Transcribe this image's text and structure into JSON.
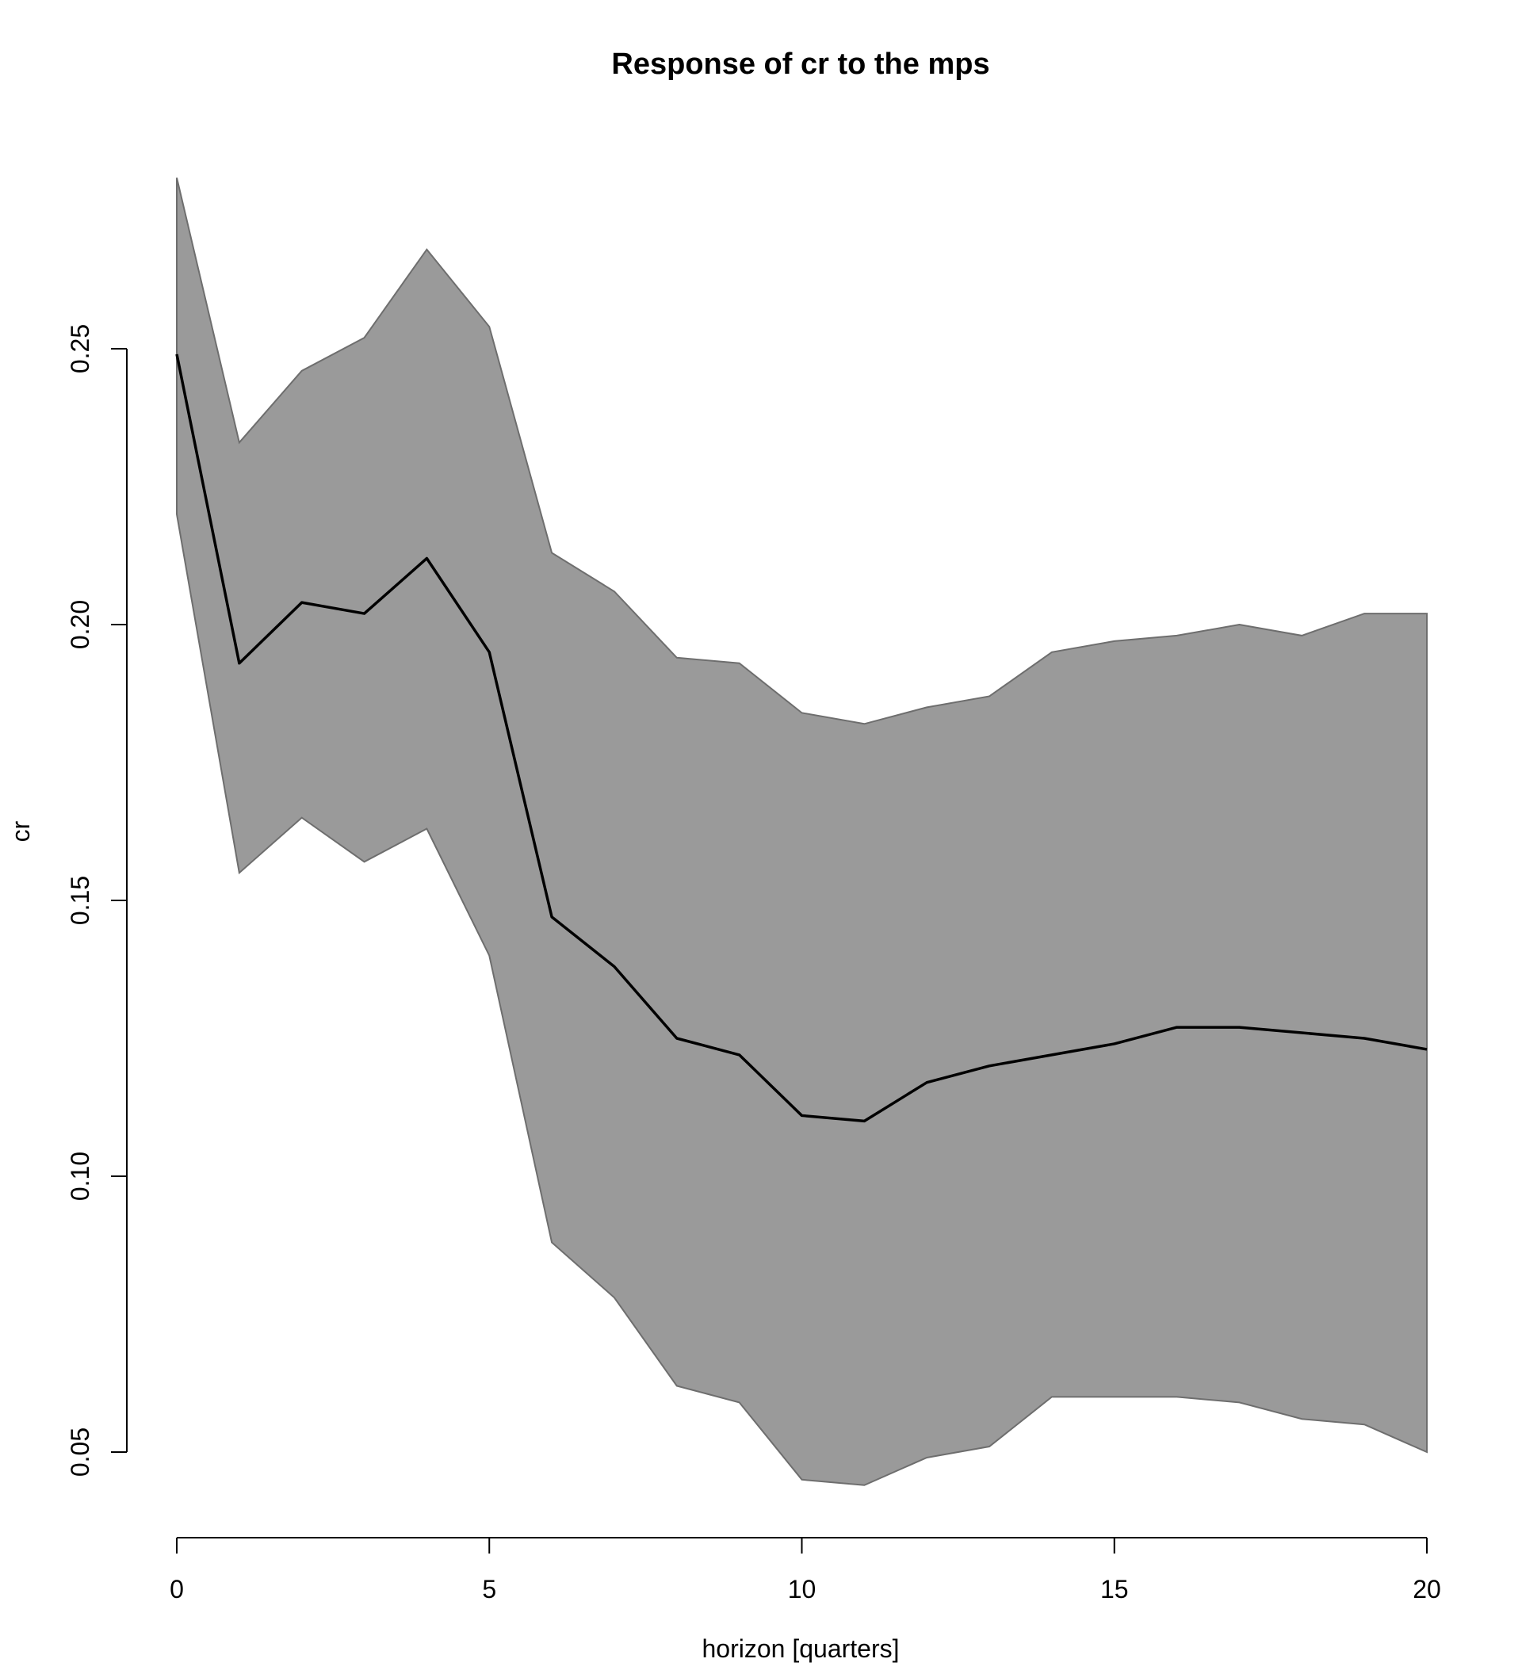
{
  "chart_data": {
    "type": "area",
    "title": "Response of cr to the mps",
    "xlabel": "horizon [quarters]",
    "ylabel": "cr",
    "xlim": [
      0,
      20
    ],
    "ylim": [
      0.05,
      0.25
    ],
    "xticks": [
      0,
      5,
      10,
      15,
      20
    ],
    "xtick_labels": [
      "0",
      "5",
      "10",
      "15",
      "20"
    ],
    "yticks": [
      0.05,
      0.1,
      0.15,
      0.2,
      0.25
    ],
    "ytick_labels": [
      "0.05",
      "0.10",
      "0.15",
      "0.20",
      "0.25"
    ],
    "grid": false,
    "legend": "none",
    "x": [
      0,
      1,
      2,
      3,
      4,
      5,
      6,
      7,
      8,
      9,
      10,
      11,
      12,
      13,
      14,
      15,
      16,
      17,
      18,
      19,
      20
    ],
    "series": [
      {
        "role": "median",
        "color": "#000000",
        "values": [
          0.249,
          0.193,
          0.204,
          0.202,
          0.212,
          0.195,
          0.147,
          0.138,
          0.125,
          0.122,
          0.111,
          0.11,
          0.117,
          0.12,
          0.122,
          0.124,
          0.127,
          0.127,
          0.126,
          0.125,
          0.123
        ]
      },
      {
        "role": "upper-band",
        "color": "#9a9a9a",
        "values": [
          0.281,
          0.233,
          0.246,
          0.252,
          0.268,
          0.254,
          0.213,
          0.206,
          0.194,
          0.193,
          0.184,
          0.182,
          0.185,
          0.187,
          0.195,
          0.197,
          0.198,
          0.2,
          0.198,
          0.202,
          0.202
        ]
      },
      {
        "role": "lower-band",
        "color": "#9a9a9a",
        "values": [
          0.22,
          0.155,
          0.165,
          0.157,
          0.163,
          0.14,
          0.088,
          0.078,
          0.062,
          0.059,
          0.045,
          0.044,
          0.049,
          0.051,
          0.06,
          0.06,
          0.06,
          0.059,
          0.056,
          0.055,
          0.05
        ]
      }
    ]
  }
}
